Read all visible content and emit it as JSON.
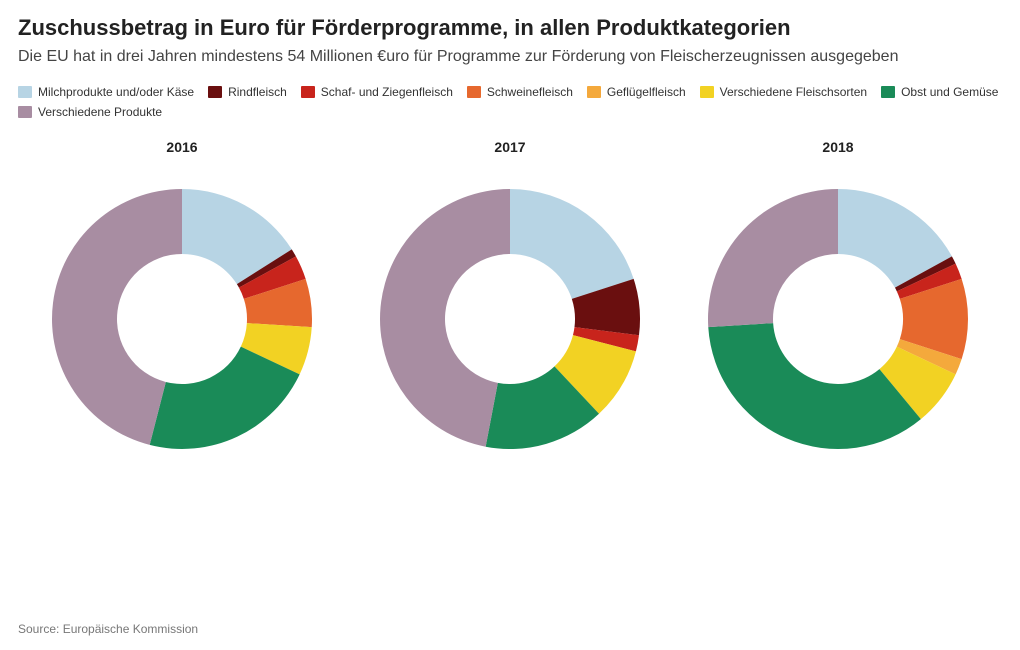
{
  "title": "Zuschussbetrag in Euro für Förderprogramme, in allen Produktkategorien",
  "subtitle": "Die EU hat in drei Jahren mindestens 54 Millionen €uro für Programme zur Förderung von Fleischerzeugnissen ausgegeben",
  "source": "Source: Europäische Kommission",
  "legend": [
    {
      "label": "Milchprodukte und/oder Käse",
      "color": "#b7d4e4"
    },
    {
      "label": "Rindfleisch",
      "color": "#6a0f0f"
    },
    {
      "label": "Schaf- und Ziegenfleisch",
      "color": "#c8241c"
    },
    {
      "label": "Schweinefleisch",
      "color": "#e6682e"
    },
    {
      "label": "Geflügelfleisch",
      "color": "#f4a93c"
    },
    {
      "label": "Verschiedene Fleischsorten",
      "color": "#f2d223"
    },
    {
      "label": "Obst und Gemüse",
      "color": "#1a8b58"
    },
    {
      "label": "Verschiedene Produkte",
      "color": "#a88da2"
    }
  ],
  "donut": {
    "outer_radius": 130,
    "inner_radius": 65,
    "svg_size": 280,
    "start_angle_deg": -90,
    "background_color": "#ffffff"
  },
  "years": [
    {
      "year": "2016",
      "slices": [
        {
          "series": "Milchprodukte und/oder Käse",
          "value": 16,
          "color": "#b7d4e4"
        },
        {
          "series": "Rindfleisch",
          "value": 1,
          "color": "#6a0f0f"
        },
        {
          "series": "Schaf- und Ziegenfleisch",
          "value": 3,
          "color": "#c8241c"
        },
        {
          "series": "Schweinefleisch",
          "value": 6,
          "color": "#e6682e"
        },
        {
          "series": "Geflügelfleisch",
          "value": 0,
          "color": "#f4a93c"
        },
        {
          "series": "Verschiedene Fleischsorten",
          "value": 6,
          "color": "#f2d223"
        },
        {
          "series": "Obst und Gemüse",
          "value": 22,
          "color": "#1a8b58"
        },
        {
          "series": "Verschiedene Produkte",
          "value": 46,
          "color": "#a88da2"
        }
      ]
    },
    {
      "year": "2017",
      "slices": [
        {
          "series": "Milchprodukte und/oder Käse",
          "value": 20,
          "color": "#b7d4e4"
        },
        {
          "series": "Rindfleisch",
          "value": 7,
          "color": "#6a0f0f"
        },
        {
          "series": "Schaf- und Ziegenfleisch",
          "value": 2,
          "color": "#c8241c"
        },
        {
          "series": "Schweinefleisch",
          "value": 0,
          "color": "#e6682e"
        },
        {
          "series": "Geflügelfleisch",
          "value": 0,
          "color": "#f4a93c"
        },
        {
          "series": "Verschiedene Fleischsorten",
          "value": 9,
          "color": "#f2d223"
        },
        {
          "series": "Obst und Gemüse",
          "value": 15,
          "color": "#1a8b58"
        },
        {
          "series": "Verschiedene Produkte",
          "value": 47,
          "color": "#a88da2"
        }
      ]
    },
    {
      "year": "2018",
      "slices": [
        {
          "series": "Milchprodukte und/oder Käse",
          "value": 17,
          "color": "#b7d4e4"
        },
        {
          "series": "Rindfleisch",
          "value": 1,
          "color": "#6a0f0f"
        },
        {
          "series": "Schaf- und Ziegenfleisch",
          "value": 2,
          "color": "#c8241c"
        },
        {
          "series": "Schweinefleisch",
          "value": 10,
          "color": "#e6682e"
        },
        {
          "series": "Geflügelfleisch",
          "value": 2,
          "color": "#f4a93c"
        },
        {
          "series": "Verschiedene Fleischsorten",
          "value": 7,
          "color": "#f2d223"
        },
        {
          "series": "Obst und Gemüse",
          "value": 35,
          "color": "#1a8b58"
        },
        {
          "series": "Verschiedene Produkte",
          "value": 26,
          "color": "#a88da2"
        }
      ]
    }
  ]
}
